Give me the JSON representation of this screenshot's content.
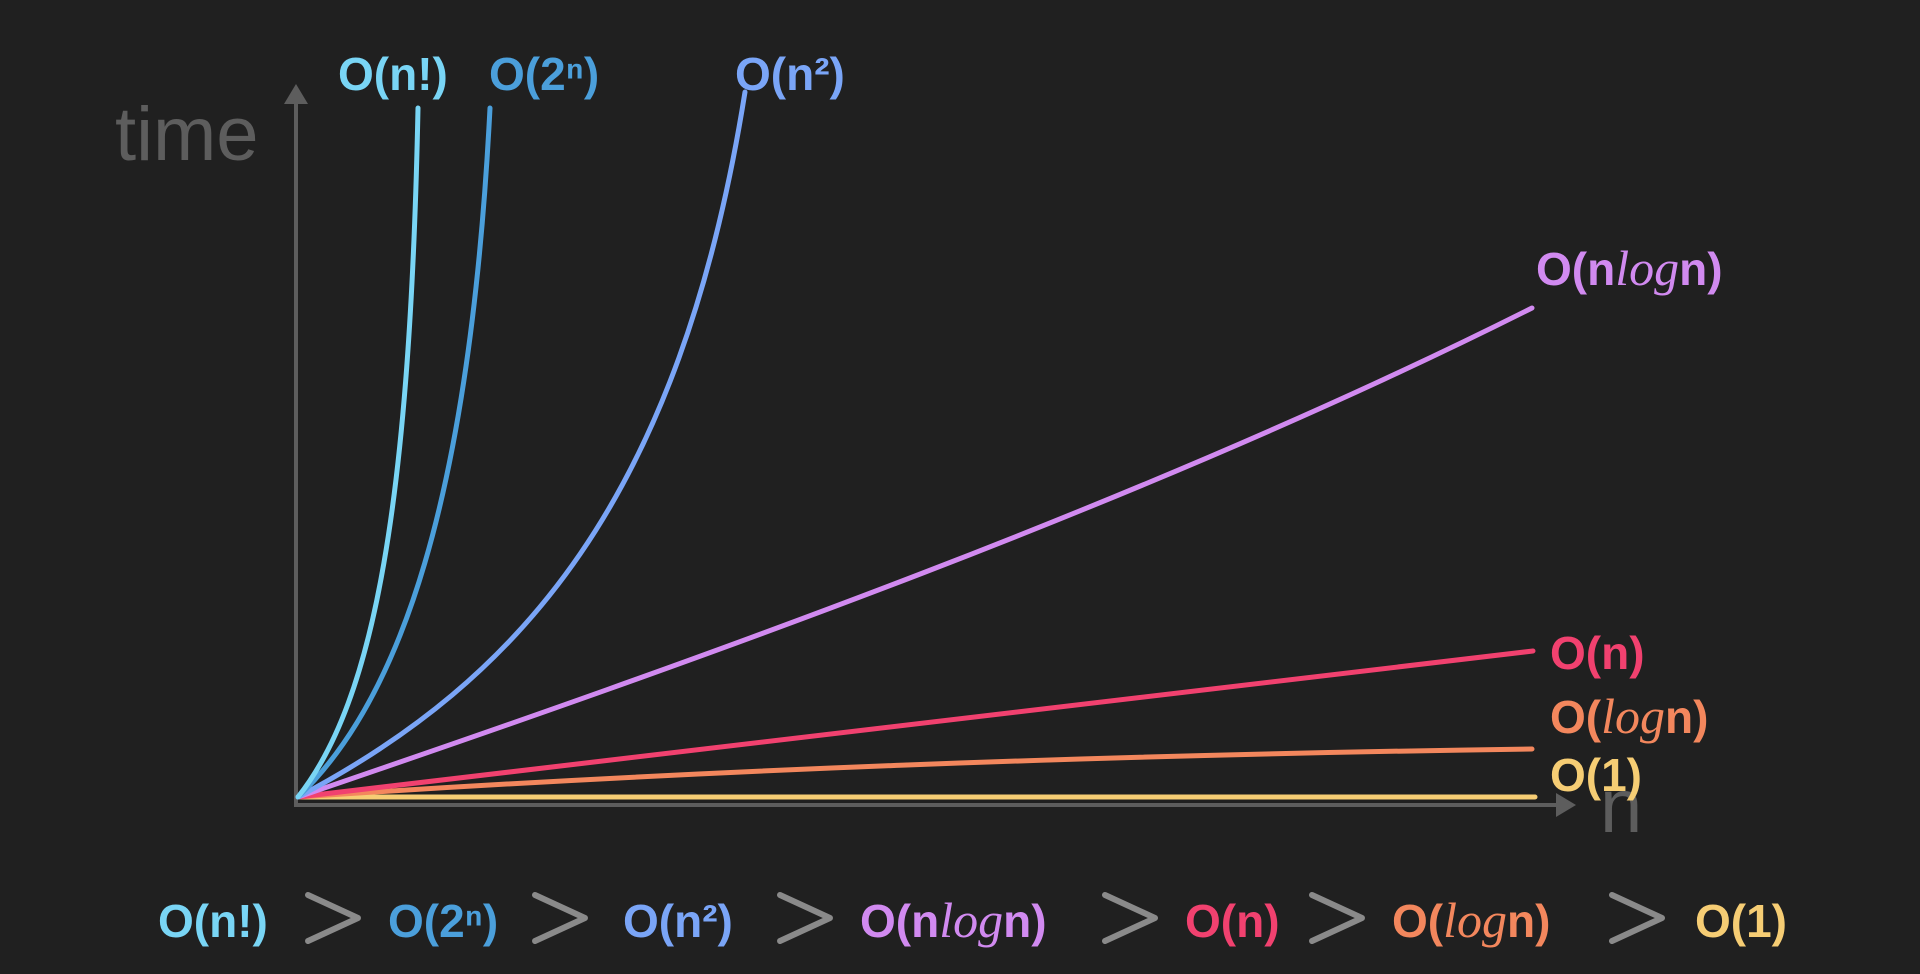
{
  "chart_data": {
    "type": "line",
    "xlabel": "n",
    "ylabel": "time",
    "series": [
      {
        "key": "factorial",
        "name": "O(n!)",
        "color": "#79d5f5"
      },
      {
        "key": "exponential",
        "name": "O(2ⁿ)",
        "color": "#4b9fdb"
      },
      {
        "key": "quadratic",
        "name": "O(n²)",
        "color": "#7aa5f7"
      },
      {
        "key": "nlogn",
        "name": "O(nlogn)",
        "color": "#d18af0"
      },
      {
        "key": "linear",
        "name": "O(n)",
        "color": "#f1416f"
      },
      {
        "key": "logn",
        "name": "O(logn)",
        "color": "#f3875d"
      },
      {
        "key": "constant",
        "name": "O(1)",
        "color": "#f6cd74"
      }
    ],
    "ordering_caption": [
      "O(n!)",
      "O(2ⁿ)",
      "O(n²)",
      "O(nlogn)",
      "O(n)",
      "O(logn)",
      "O(1)"
    ],
    "ordering_separator": ">"
  }
}
